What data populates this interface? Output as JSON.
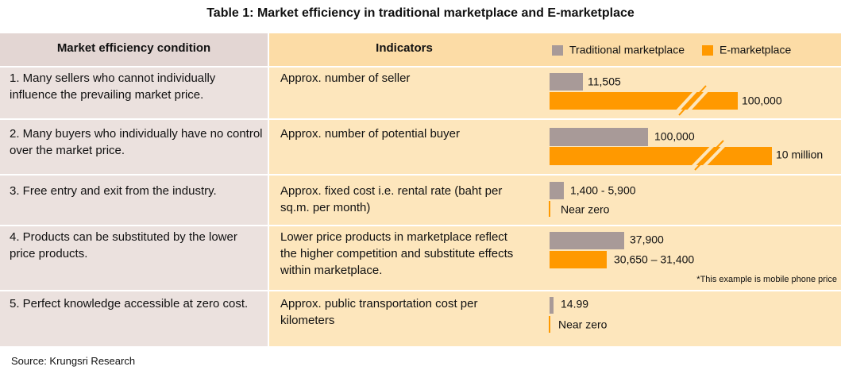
{
  "title": "Table 1: Market efficiency in traditional marketplace and E-marketplace",
  "header": {
    "condition": "Market efficiency condition",
    "indicators": "Indicators"
  },
  "legend": [
    "Traditional marketplace",
    "E-marketplace"
  ],
  "rows": [
    {
      "condition": "1. Many sellers who cannot individually influence the prevailing market price.",
      "indicator": "Approx. number of seller",
      "traditional": "11,505",
      "e": "100,000"
    },
    {
      "condition": "2. Many buyers who individually have no control over the market price.",
      "indicator": "Approx. number of potential buyer",
      "traditional": "100,000",
      "e": "10 million"
    },
    {
      "condition": "3. Free entry and exit from the industry.",
      "indicator": "Approx. fixed cost i.e. rental rate (baht per sq.m. per month)",
      "traditional": "1,400 - 5,900",
      "e": "Near zero"
    },
    {
      "condition": "4. Products can be substituted by the lower price products.",
      "indicator": "Lower price products in marketplace reflect the higher competition and substitute effects within marketplace.",
      "traditional": "37,900",
      "e": "30,650 – 31,400",
      "note": "*This example is mobile phone price"
    },
    {
      "condition": "5. Perfect knowledge accessible at zero cost.",
      "indicator": "Approx. public transportation cost per kilometers",
      "traditional": "14.99",
      "e": "Near zero"
    }
  ],
  "source": "Source: Krungsri Research"
}
